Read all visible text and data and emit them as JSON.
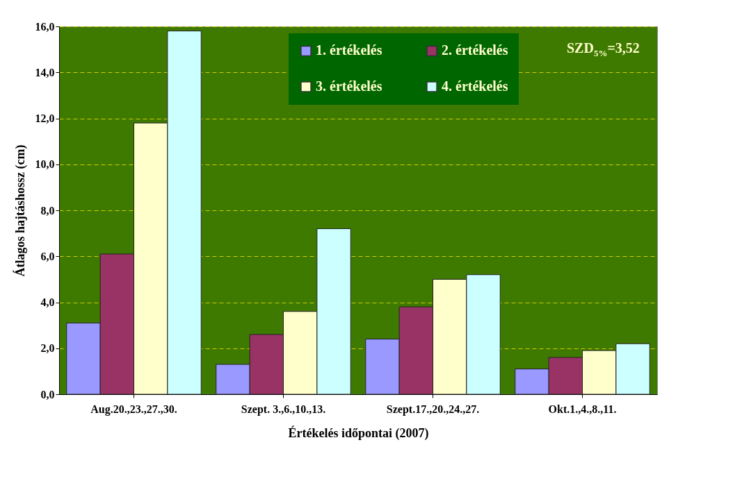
{
  "chart_data": {
    "type": "bar",
    "xlabel": "Értékelés időpontai  (2007)",
    "ylabel": "Átlagos hajtáshossz (cm)",
    "categories": [
      "Aug.20.,23.,27.,30.",
      "Szept. 3.,6.,10.,13.",
      "Szept.17.,20.,24.,27.",
      "Okt.1.,4.,8.,11."
    ],
    "series": [
      {
        "name": "1. értékelés",
        "color": "#9999ff",
        "values": [
          3.1,
          1.3,
          2.4,
          1.1
        ]
      },
      {
        "name": "2. értékelés",
        "color": "#993366",
        "values": [
          6.1,
          2.6,
          3.8,
          1.6
        ]
      },
      {
        "name": "3. értékelés",
        "color": "#ffffcc",
        "values": [
          11.8,
          3.6,
          5.0,
          1.9
        ]
      },
      {
        "name": "4. értékelés",
        "color": "#ccffff",
        "values": [
          15.8,
          7.2,
          5.2,
          2.2
        ]
      }
    ],
    "ylim": [
      0,
      16
    ],
    "yticks": [
      {
        "value": 0,
        "label": "0,0"
      },
      {
        "value": 2,
        "label": "2,0"
      },
      {
        "value": 4,
        "label": "4,0"
      },
      {
        "value": 6,
        "label": "6,0"
      },
      {
        "value": 8,
        "label": "8,0"
      },
      {
        "value": 10,
        "label": "10,0"
      },
      {
        "value": 12,
        "label": "12,0"
      },
      {
        "value": 14,
        "label": "14,0"
      },
      {
        "value": 16,
        "label": "16,0"
      }
    ],
    "grid": "y",
    "legend": "top",
    "annotations": [
      "SZD$_{5%}$=3,52"
    ]
  }
}
